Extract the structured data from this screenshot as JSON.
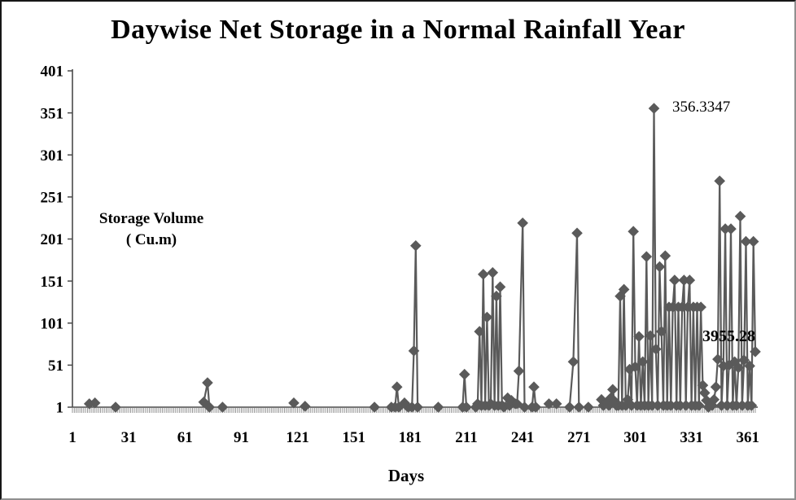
{
  "chart": {
    "title": "Daywise Net Storage in a Normal Rainfall Year",
    "xlabel": "Days",
    "ylabel_line1": "Storage Volume",
    "ylabel_line2": "( Cu.m)",
    "peak_annotation": "356.3347",
    "total_annotation": "3955.28"
  },
  "chart_data": {
    "type": "line",
    "title": "Daywise Net Storage in a Normal Rainfall Year",
    "xlabel": "Days",
    "ylabel": "Storage Volume ( Cu.m)",
    "series_name": "Daywise Net Storage",
    "series_color": "#5a5a5a",
    "marker": "diamond",
    "grid": false,
    "legend": "none",
    "xlim": [
      1,
      365
    ],
    "ylim": [
      1,
      401
    ],
    "x_ticks": [
      1,
      31,
      61,
      91,
      121,
      151,
      181,
      211,
      241,
      271,
      301,
      331,
      361
    ],
    "y_ticks": [
      1,
      51,
      101,
      151,
      201,
      251,
      301,
      351,
      401
    ],
    "annotations": [
      {
        "text": "356.3347",
        "day": 311,
        "value": 356.3347,
        "bold": false
      },
      {
        "text": "3955.28",
        "day": 353,
        "value": 83,
        "bold": true
      }
    ],
    "points": [
      [
        10,
        5
      ],
      [
        13,
        6
      ],
      [
        24,
        1
      ],
      [
        71,
        7
      ],
      [
        73,
        30
      ],
      [
        74,
        1
      ],
      [
        81,
        1
      ],
      [
        119,
        6
      ],
      [
        125,
        2
      ],
      [
        162,
        1
      ],
      [
        171,
        1
      ],
      [
        173,
        1
      ],
      [
        174,
        25
      ],
      [
        175,
        1
      ],
      [
        178,
        6
      ],
      [
        179,
        3
      ],
      [
        180,
        1
      ],
      [
        182,
        1
      ],
      [
        183,
        68
      ],
      [
        184,
        193
      ],
      [
        185,
        1
      ],
      [
        196,
        1
      ],
      [
        209,
        1
      ],
      [
        210,
        40
      ],
      [
        211,
        1
      ],
      [
        216,
        1
      ],
      [
        217,
        5
      ],
      [
        218,
        91
      ],
      [
        219,
        3
      ],
      [
        220,
        159
      ],
      [
        221,
        3
      ],
      [
        222,
        108
      ],
      [
        223,
        3
      ],
      [
        224,
        5
      ],
      [
        225,
        161
      ],
      [
        226,
        3
      ],
      [
        227,
        133
      ],
      [
        228,
        3
      ],
      [
        229,
        144
      ],
      [
        230,
        3
      ],
      [
        231,
        1
      ],
      [
        233,
        12
      ],
      [
        234,
        3
      ],
      [
        235,
        9
      ],
      [
        237,
        5
      ],
      [
        238,
        5
      ],
      [
        239,
        44
      ],
      [
        241,
        220
      ],
      [
        242,
        1
      ],
      [
        246,
        1
      ],
      [
        247,
        25
      ],
      [
        248,
        1
      ],
      [
        255,
        5
      ],
      [
        259,
        5
      ],
      [
        266,
        1
      ],
      [
        268,
        55
      ],
      [
        270,
        208
      ],
      [
        271,
        1
      ],
      [
        276,
        1
      ],
      [
        283,
        10
      ],
      [
        284,
        3
      ],
      [
        285,
        5
      ],
      [
        286,
        7
      ],
      [
        287,
        3
      ],
      [
        288,
        12
      ],
      [
        289,
        22
      ],
      [
        290,
        8
      ],
      [
        291,
        3
      ],
      [
        292,
        3
      ],
      [
        293,
        133
      ],
      [
        294,
        3
      ],
      [
        295,
        141
      ],
      [
        296,
        3
      ],
      [
        297,
        10
      ],
      [
        298,
        46
      ],
      [
        299,
        3
      ],
      [
        300,
        210
      ],
      [
        301,
        49
      ],
      [
        302,
        3
      ],
      [
        303,
        85
      ],
      [
        304,
        3
      ],
      [
        305,
        55
      ],
      [
        306,
        3
      ],
      [
        307,
        180
      ],
      [
        308,
        3
      ],
      [
        309,
        86
      ],
      [
        310,
        3
      ],
      [
        311,
        356.3347
      ],
      [
        312,
        70
      ],
      [
        313,
        3
      ],
      [
        314,
        168
      ],
      [
        315,
        91
      ],
      [
        316,
        3
      ],
      [
        317,
        181
      ],
      [
        318,
        3
      ],
      [
        319,
        120
      ],
      [
        320,
        3
      ],
      [
        321,
        120
      ],
      [
        322,
        152
      ],
      [
        323,
        3
      ],
      [
        324,
        120
      ],
      [
        325,
        3
      ],
      [
        326,
        120
      ],
      [
        327,
        152
      ],
      [
        328,
        3
      ],
      [
        329,
        120
      ],
      [
        330,
        152
      ],
      [
        331,
        3
      ],
      [
        332,
        120
      ],
      [
        333,
        3
      ],
      [
        334,
        120
      ],
      [
        335,
        3
      ],
      [
        336,
        120
      ],
      [
        337,
        27
      ],
      [
        338,
        18
      ],
      [
        339,
        9
      ],
      [
        340,
        1
      ],
      [
        342,
        3
      ],
      [
        343,
        10
      ],
      [
        344,
        25
      ],
      [
        345,
        58
      ],
      [
        346,
        270
      ],
      [
        347,
        3
      ],
      [
        348,
        50
      ],
      [
        349,
        213
      ],
      [
        350,
        3
      ],
      [
        351,
        51
      ],
      [
        352,
        213
      ],
      [
        353,
        3
      ],
      [
        354,
        55
      ],
      [
        355,
        3
      ],
      [
        356,
        48
      ],
      [
        357,
        228
      ],
      [
        358,
        3
      ],
      [
        359,
        57
      ],
      [
        360,
        198
      ],
      [
        361,
        3
      ],
      [
        362,
        50
      ],
      [
        363,
        3
      ],
      [
        364,
        198
      ],
      [
        365,
        67
      ]
    ]
  }
}
